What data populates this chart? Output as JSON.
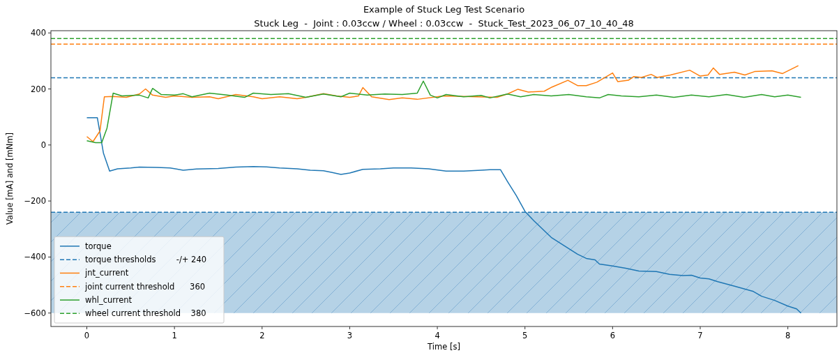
{
  "chart_data": {
    "type": "line",
    "title": "Example of Stuck Leg Test Scenario",
    "subtitle": "Stuck Leg  -  Joint : 0.03ccw / Wheel : 0.03ccw  -  Stuck_Test_2023_06_07_10_40_48",
    "xlabel": "Time [s]",
    "ylabel": "Value [mA] and [mNm]",
    "xlim": [
      -0.41,
      8.56
    ],
    "ylim": [
      -648,
      408
    ],
    "xticks": [
      0,
      1,
      2,
      3,
      4,
      5,
      6,
      7,
      8
    ],
    "yticks": [
      {
        "value": -600,
        "label": "−600"
      },
      {
        "value": -400,
        "label": "−400"
      },
      {
        "value": -200,
        "label": "−200"
      },
      0,
      200,
      400
    ],
    "grid": false,
    "legend": "bottom left",
    "line_style": "solid",
    "marker": "none",
    "series": [
      {
        "name": "torque",
        "color": "#1f77b4",
        "x": [
          0,
          0.12,
          0.19,
          0.26,
          0.35,
          0.5,
          0.6,
          0.8,
          0.95,
          1.1,
          1.25,
          1.5,
          1.7,
          1.9,
          2.05,
          2.2,
          2.4,
          2.55,
          2.7,
          2.8,
          2.9,
          3.0,
          3.15,
          3.35,
          3.5,
          3.7,
          3.9,
          4.1,
          4.3,
          4.5,
          4.6,
          4.72,
          4.8,
          4.9,
          5.0,
          5.1,
          5.2,
          5.3,
          5.45,
          5.6,
          5.7,
          5.8,
          5.85,
          6.0,
          6.15,
          6.3,
          6.5,
          6.65,
          6.8,
          6.9,
          7.0,
          7.1,
          7.2,
          7.4,
          7.6,
          7.7,
          7.85,
          8.0,
          8.1,
          8.15
        ],
        "values": [
          97,
          97,
          -30,
          -93,
          -85,
          -82,
          -79,
          -80,
          -82,
          -90,
          -86,
          -84,
          -79,
          -77,
          -78,
          -82,
          -85,
          -90,
          -92,
          -98,
          -105,
          -100,
          -87,
          -85,
          -82,
          -82,
          -85,
          -93,
          -93,
          -90,
          -88,
          -88,
          -130,
          -180,
          -237,
          -270,
          -300,
          -330,
          -360,
          -390,
          -405,
          -410,
          -425,
          -432,
          -440,
          -450,
          -452,
          -462,
          -466,
          -465,
          -475,
          -478,
          -488,
          -505,
          -522,
          -540,
          -555,
          -575,
          -585,
          -600
        ]
      },
      {
        "name": "jnt_current",
        "color": "#ff7f0e",
        "x": [
          0,
          0.07,
          0.15,
          0.2,
          0.3,
          0.45,
          0.6,
          0.67,
          0.75,
          0.9,
          1.0,
          1.2,
          1.4,
          1.5,
          1.7,
          1.9,
          2.0,
          2.2,
          2.4,
          2.5,
          2.7,
          2.85,
          3.0,
          3.1,
          3.15,
          3.25,
          3.45,
          3.6,
          3.77,
          4.07,
          4.68,
          4.8,
          4.92,
          5.04,
          5.22,
          5.31,
          5.49,
          5.6,
          5.7,
          5.82,
          6.0,
          6.06,
          6.18,
          6.24,
          6.33,
          6.44,
          6.51,
          6.66,
          6.88,
          7.0,
          7.09,
          7.15,
          7.22,
          7.39,
          7.51,
          7.62,
          7.82,
          7.94,
          8.12
        ],
        "values": [
          30,
          12,
          50,
          172,
          173,
          170,
          182,
          200,
          178,
          170,
          175,
          170,
          172,
          165,
          180,
          172,
          165,
          172,
          165,
          170,
          183,
          175,
          170,
          175,
          205,
          172,
          162,
          168,
          163,
          175,
          170,
          182,
          199,
          189,
          192,
          207,
          231,
          212,
          212,
          224,
          257,
          226,
          231,
          244,
          241,
          252,
          241,
          250,
          267,
          246,
          250,
          275,
          252,
          260,
          250,
          262,
          265,
          255,
          283
        ]
      },
      {
        "name": "whl_current",
        "color": "#2ca02c",
        "x": [
          0,
          0.1,
          0.17,
          0.23,
          0.3,
          0.4,
          0.6,
          0.7,
          0.75,
          0.85,
          1.0,
          1.1,
          1.2,
          1.4,
          1.6,
          1.8,
          1.9,
          2.1,
          2.3,
          2.5,
          2.7,
          2.9,
          3.0,
          3.2,
          3.4,
          3.6,
          3.77,
          3.84,
          3.92,
          4.0,
          4.1,
          4.3,
          4.5,
          4.6,
          4.8,
          4.95,
          5.1,
          5.3,
          5.5,
          5.7,
          5.85,
          5.95,
          6.1,
          6.3,
          6.5,
          6.7,
          6.9,
          7.1,
          7.3,
          7.5,
          7.7,
          7.85,
          8.0,
          8.15
        ],
        "values": [
          15,
          8,
          8,
          60,
          185,
          175,
          178,
          168,
          202,
          180,
          178,
          183,
          172,
          185,
          178,
          170,
          185,
          180,
          183,
          170,
          182,
          172,
          185,
          178,
          182,
          180,
          185,
          228,
          178,
          168,
          180,
          172,
          177,
          168,
          182,
          172,
          180,
          175,
          180,
          172,
          168,
          180,
          175,
          172,
          178,
          170,
          178,
          172,
          180,
          170,
          180,
          172,
          178,
          170
        ]
      }
    ],
    "bands": [
      {
        "axis": "y",
        "from": -600,
        "to": -240,
        "color": "#b5d2e6"
      }
    ],
    "ref_lines": [
      {
        "axis": "y",
        "value": 240,
        "label": "torque thresholds        -/+ 240",
        "color": "#1f77b4",
        "line_style": "dashed"
      },
      {
        "axis": "y",
        "value": -240,
        "color": "#1f77b4",
        "line_style": "dashed"
      },
      {
        "axis": "y",
        "value": 360,
        "label": "joint current threshold      360",
        "color": "#ff7f0e",
        "line_style": "dashed"
      },
      {
        "axis": "y",
        "value": 380,
        "label": "wheel current threshold    380",
        "color": "#2ca02c",
        "line_style": "dashed"
      }
    ]
  }
}
